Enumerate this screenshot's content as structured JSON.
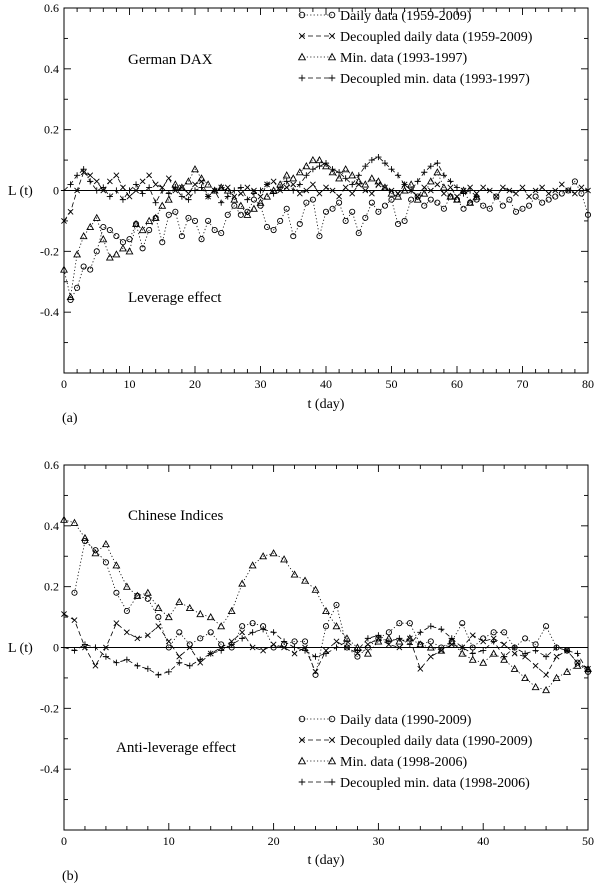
{
  "chart_data": [
    {
      "panel_label": "(a)",
      "type": "line",
      "title": "German DAX",
      "annotation": "Leverage effect",
      "xlabel": "t (day)",
      "ylabel": "L (t)",
      "xlim": [
        0,
        80
      ],
      "ylim": [
        -0.6,
        0.6
      ],
      "xticks": [
        "0",
        "10",
        "20",
        "30",
        "40",
        "50",
        "60",
        "70",
        "80"
      ],
      "yticks": [
        "-0.4",
        "-0.2",
        "0",
        "0.2",
        "0.4",
        "0.6"
      ],
      "grid": false,
      "legend_position": "top-right",
      "series": [
        {
          "name": "Daily data (1959-2009)",
          "marker": "circle",
          "line": "dotted",
          "x": [
            1,
            2,
            3,
            4,
            5,
            6,
            7,
            8,
            9,
            10,
            11,
            12,
            13,
            14,
            15,
            16,
            17,
            18,
            19,
            20,
            21,
            22,
            23,
            24,
            25,
            26,
            27,
            28,
            29,
            30,
            31,
            32,
            33,
            34,
            35,
            36,
            37,
            38,
            39,
            40,
            41,
            42,
            43,
            44,
            45,
            46,
            47,
            48,
            49,
            50,
            51,
            52,
            53,
            54,
            55,
            56,
            57,
            58,
            59,
            60,
            61,
            62,
            63,
            64,
            65,
            66,
            67,
            68,
            69,
            70,
            71,
            72,
            73,
            74,
            75,
            76,
            77,
            78,
            79,
            80
          ],
          "y": [
            -0.36,
            -0.32,
            -0.25,
            -0.26,
            -0.2,
            -0.12,
            -0.13,
            -0.15,
            -0.17,
            -0.16,
            -0.11,
            -0.19,
            -0.13,
            -0.09,
            -0.17,
            -0.08,
            -0.07,
            -0.15,
            -0.09,
            -0.1,
            -0.16,
            -0.1,
            -0.13,
            -0.14,
            -0.08,
            -0.05,
            -0.08,
            -0.07,
            -0.03,
            -0.05,
            -0.12,
            -0.13,
            -0.1,
            -0.06,
            -0.15,
            -0.11,
            -0.04,
            -0.03,
            -0.15,
            -0.07,
            -0.06,
            -0.04,
            -0.1,
            -0.07,
            -0.14,
            -0.09,
            -0.04,
            -0.07,
            -0.05,
            -0.03,
            -0.11,
            -0.1,
            -0.03,
            -0.02,
            -0.05,
            -0.03,
            -0.04,
            -0.06,
            -0.02,
            -0.03,
            -0.06,
            -0.04,
            -0.03,
            -0.05,
            -0.06,
            -0.02,
            -0.05,
            -0.03,
            -0.07,
            -0.06,
            -0.05,
            -0.02,
            -0.04,
            -0.03,
            -0.02,
            -0.01,
            0.0,
            0.03,
            -0.01,
            -0.08
          ]
        },
        {
          "name": "Decoupled daily data (1959-2009)",
          "marker": "x",
          "line": "dashed",
          "x": [
            0,
            1,
            2,
            3,
            4,
            5,
            6,
            7,
            8,
            9,
            10,
            11,
            12,
            13,
            14,
            15,
            16,
            17,
            18,
            19,
            20,
            21,
            22,
            23,
            24,
            25,
            26,
            27,
            28,
            29,
            30,
            31,
            32,
            33,
            34,
            35,
            36,
            37,
            38,
            39,
            40,
            41,
            42,
            43,
            44,
            45,
            46,
            47,
            48,
            49,
            50,
            51,
            52,
            53,
            54,
            55,
            56,
            57,
            58,
            59,
            60,
            61,
            62,
            63,
            64,
            65,
            66,
            67,
            68,
            69,
            70,
            71,
            72,
            73,
            74,
            75,
            76,
            77,
            78,
            79,
            80
          ],
          "y": [
            -0.1,
            -0.07,
            0.0,
            0.06,
            0.05,
            0.03,
            0.0,
            0.03,
            0.05,
            0.01,
            -0.02,
            0.0,
            0.03,
            0.05,
            0.02,
            0.01,
            0.04,
            0.0,
            0.01,
            -0.01,
            0.02,
            0.03,
            -0.02,
            0.0,
            0.01,
            0.01,
            -0.02,
            -0.01,
            0.01,
            0.0,
            -0.02,
            0.02,
            0.03,
            0.0,
            0.01,
            0.02,
            -0.01,
            0.0,
            0.02,
            -0.01,
            0.01,
            0.0,
            -0.02,
            0.01,
            -0.01,
            0.02,
            0.0,
            -0.01,
            0.02,
            0.01,
            0.0,
            -0.01,
            0.02,
            0.0,
            -0.02,
            0.01,
            0.0,
            0.02,
            -0.01,
            0.01,
            -0.02,
            0.0,
            0.01,
            -0.01,
            0.01,
            0.0,
            -0.02,
            0.01,
            0.0,
            -0.01,
            0.01,
            -0.02,
            0.0,
            0.01,
            -0.01,
            0.0,
            0.02,
            0.0,
            -0.01,
            0.01,
            0.0
          ]
        },
        {
          "name": "Min. data (1993-1997)",
          "marker": "triangle",
          "line": "dotted",
          "x": [
            0,
            1,
            2,
            3,
            4,
            5,
            6,
            7,
            8,
            9,
            10,
            11,
            12,
            13,
            14,
            15,
            16,
            17,
            18,
            19,
            20,
            21,
            22,
            23,
            24,
            25,
            26,
            27,
            28,
            29,
            30,
            31,
            32,
            33,
            34,
            35,
            36,
            37,
            38,
            39,
            40,
            41,
            42,
            43,
            44,
            45,
            46,
            47,
            48,
            49,
            50,
            51,
            52,
            53,
            54,
            55,
            56,
            57,
            58,
            59,
            60,
            61,
            62,
            63
          ],
          "y": [
            -0.26,
            -0.35,
            -0.21,
            -0.15,
            -0.12,
            -0.09,
            -0.16,
            -0.22,
            -0.21,
            -0.19,
            -0.2,
            -0.11,
            -0.13,
            -0.1,
            -0.09,
            -0.05,
            -0.03,
            0.02,
            0.01,
            0.03,
            0.07,
            0.04,
            0.02,
            0.0,
            0.01,
            0.0,
            -0.03,
            -0.05,
            -0.08,
            -0.06,
            -0.04,
            -0.02,
            0.0,
            0.02,
            0.05,
            0.04,
            0.06,
            0.08,
            0.1,
            0.1,
            0.08,
            0.06,
            0.04,
            0.07,
            0.05,
            0.03,
            0.02,
            0.04,
            0.03,
            0.01,
            -0.01,
            -0.02,
            0.0,
            0.02,
            -0.03,
            -0.01,
            0.03,
            0.06,
            0.01,
            -0.02,
            -0.03,
            0.0,
            -0.04,
            -0.02
          ]
        },
        {
          "name": "Decoupled min. data (1993-1997)",
          "marker": "plus",
          "line": "dashed",
          "x": [
            0,
            1,
            2,
            3,
            4,
            5,
            6,
            7,
            8,
            9,
            10,
            11,
            12,
            13,
            14,
            15,
            16,
            17,
            18,
            19,
            20,
            21,
            22,
            23,
            24,
            25,
            26,
            27,
            28,
            29,
            30,
            31,
            32,
            33,
            34,
            35,
            36,
            37,
            38,
            39,
            40,
            41,
            42,
            43,
            44,
            45,
            46,
            47,
            48,
            49,
            50,
            51,
            52,
            53,
            54,
            55,
            56,
            57,
            58,
            59,
            60,
            61,
            62,
            63
          ],
          "y": [
            0.0,
            0.02,
            0.05,
            0.07,
            0.03,
            0.0,
            0.01,
            -0.02,
            0.0,
            -0.03,
            0.0,
            0.02,
            -0.01,
            0.01,
            -0.04,
            0.0,
            -0.01,
            0.01,
            -0.02,
            -0.03,
            0.0,
            0.01,
            -0.02,
            0.0,
            -0.04,
            -0.02,
            0.0,
            0.01,
            -0.03,
            -0.01,
            0.0,
            0.02,
            -0.01,
            0.01,
            0.03,
            0.0,
            0.02,
            0.05,
            0.07,
            0.08,
            0.09,
            0.07,
            0.06,
            0.04,
            0.02,
            0.05,
            0.08,
            0.1,
            0.11,
            0.09,
            0.07,
            0.05,
            0.02,
            0.0,
            0.03,
            0.06,
            0.08,
            0.09,
            0.05,
            0.03,
            0.01,
            -0.01,
            0.0,
            -0.02
          ]
        }
      ]
    },
    {
      "panel_label": "(b)",
      "type": "line",
      "title": "Chinese Indices",
      "annotation": "Anti-leverage effect",
      "xlabel": "t (day)",
      "ylabel": "L (t)",
      "xlim": [
        0,
        50
      ],
      "ylim": [
        -0.6,
        0.6
      ],
      "xticks": [
        "0",
        "10",
        "20",
        "30",
        "40",
        "50"
      ],
      "yticks": [
        "-0.4",
        "-0.2",
        "0",
        "0.2",
        "0.4",
        "0.6"
      ],
      "grid": false,
      "legend_position": "bottom-right",
      "series": [
        {
          "name": "Daily data (1990-2009)",
          "marker": "circle",
          "line": "dotted",
          "x": [
            1,
            2,
            3,
            4,
            5,
            6,
            7,
            8,
            9,
            10,
            11,
            12,
            13,
            14,
            15,
            16,
            17,
            18,
            19,
            20,
            21,
            22,
            23,
            24,
            25,
            26,
            27,
            28,
            29,
            30,
            31,
            32,
            33,
            34,
            35,
            36,
            37,
            38,
            39,
            40,
            41,
            42,
            43,
            44,
            45,
            46,
            47,
            48,
            49,
            50
          ],
          "y": [
            0.18,
            0.35,
            0.32,
            0.28,
            0.18,
            0.12,
            0.17,
            0.16,
            0.1,
            0.0,
            0.05,
            0.01,
            0.03,
            0.05,
            0.01,
            0.0,
            0.07,
            0.08,
            0.07,
            0.0,
            0.01,
            0.02,
            0.02,
            -0.09,
            0.07,
            0.14,
            0.0,
            -0.03,
            0.0,
            0.03,
            0.05,
            0.08,
            0.08,
            0.01,
            0.02,
            0.0,
            0.02,
            0.08,
            0.0,
            0.03,
            0.05,
            0.05,
            0.0,
            0.03,
            0.01,
            0.07,
            0.0,
            -0.01,
            -0.05,
            -0.08
          ]
        },
        {
          "name": "Decoupled daily data (1990-2009)",
          "marker": "x",
          "line": "dashed",
          "x": [
            0,
            1,
            2,
            3,
            4,
            5,
            6,
            7,
            8,
            9,
            10,
            11,
            12,
            13,
            14,
            15,
            16,
            17,
            18,
            19,
            20,
            21,
            22,
            23,
            24,
            25,
            26,
            27,
            28,
            29,
            30,
            31,
            32,
            33,
            34,
            35,
            36,
            37,
            38,
            39,
            40,
            41,
            42,
            43,
            44,
            45,
            46,
            47,
            48,
            49,
            50
          ],
          "y": [
            0.11,
            0.09,
            0.0,
            -0.06,
            0.0,
            0.08,
            0.05,
            0.03,
            0.04,
            0.07,
            0.02,
            -0.03,
            0.0,
            -0.05,
            -0.02,
            0.0,
            0.02,
            0.05,
            0.0,
            -0.01,
            0.01,
            0.0,
            -0.02,
            0.0,
            -0.08,
            -0.01,
            0.02,
            0.0,
            -0.02,
            0.01,
            0.03,
            0.01,
            0.0,
            0.03,
            -0.07,
            -0.03,
            -0.01,
            0.01,
            0.0,
            0.04,
            0.02,
            0.03,
            0.01,
            -0.02,
            -0.03,
            -0.06,
            -0.09,
            -0.03,
            -0.01,
            -0.05,
            -0.07
          ]
        },
        {
          "name": "Min. data (1998-2006)",
          "marker": "triangle",
          "line": "dotted",
          "x": [
            0,
            1,
            2,
            3,
            4,
            5,
            6,
            7,
            8,
            9,
            10,
            11,
            12,
            13,
            14,
            15,
            16,
            17,
            18,
            19,
            20,
            21,
            22,
            23,
            24,
            25,
            26,
            27,
            28,
            29,
            30,
            31,
            32,
            33,
            34,
            35,
            36,
            37,
            38,
            39,
            40,
            41,
            42,
            43,
            44,
            45,
            46,
            47,
            48,
            49,
            50
          ],
          "y": [
            0.42,
            0.41,
            0.36,
            0.31,
            0.34,
            0.27,
            0.2,
            0.17,
            0.18,
            0.13,
            0.1,
            0.15,
            0.13,
            0.11,
            0.1,
            0.07,
            0.12,
            0.21,
            0.27,
            0.3,
            0.31,
            0.29,
            0.24,
            0.22,
            0.19,
            0.12,
            0.07,
            0.03,
            0.0,
            -0.02,
            0.02,
            0.03,
            0.02,
            0.03,
            0.01,
            0.0,
            -0.01,
            0.02,
            -0.02,
            -0.04,
            -0.05,
            -0.02,
            -0.04,
            -0.07,
            -0.1,
            -0.13,
            -0.14,
            -0.1,
            -0.08,
            -0.06,
            -0.07
          ]
        },
        {
          "name": "Decoupled min. data (1998-2006)",
          "marker": "plus",
          "line": "dashed",
          "x": [
            0,
            1,
            2,
            3,
            4,
            5,
            6,
            7,
            8,
            9,
            10,
            11,
            12,
            13,
            14,
            15,
            16,
            17,
            18,
            19,
            20,
            21,
            22,
            23,
            24,
            25,
            26,
            27,
            28,
            29,
            30,
            31,
            32,
            33,
            34,
            35,
            36,
            37,
            38,
            39,
            40,
            41,
            42,
            43,
            44,
            45,
            46,
            47,
            48,
            49,
            50
          ],
          "y": [
            0.0,
            -0.01,
            0.01,
            0.0,
            -0.03,
            -0.05,
            -0.04,
            -0.06,
            -0.07,
            -0.09,
            -0.08,
            -0.05,
            -0.06,
            -0.04,
            -0.02,
            -0.01,
            0.01,
            0.03,
            0.05,
            0.06,
            0.05,
            0.02,
            0.0,
            -0.01,
            -0.03,
            -0.02,
            0.0,
            0.02,
            -0.01,
            0.03,
            0.04,
            0.02,
            0.03,
            0.01,
            0.05,
            0.07,
            0.06,
            0.03,
            0.0,
            -0.02,
            -0.01,
            0.02,
            -0.03,
            0.0,
            -0.02,
            -0.01,
            -0.03,
            0.0,
            -0.01,
            -0.02,
            -0.08
          ]
        }
      ]
    }
  ]
}
